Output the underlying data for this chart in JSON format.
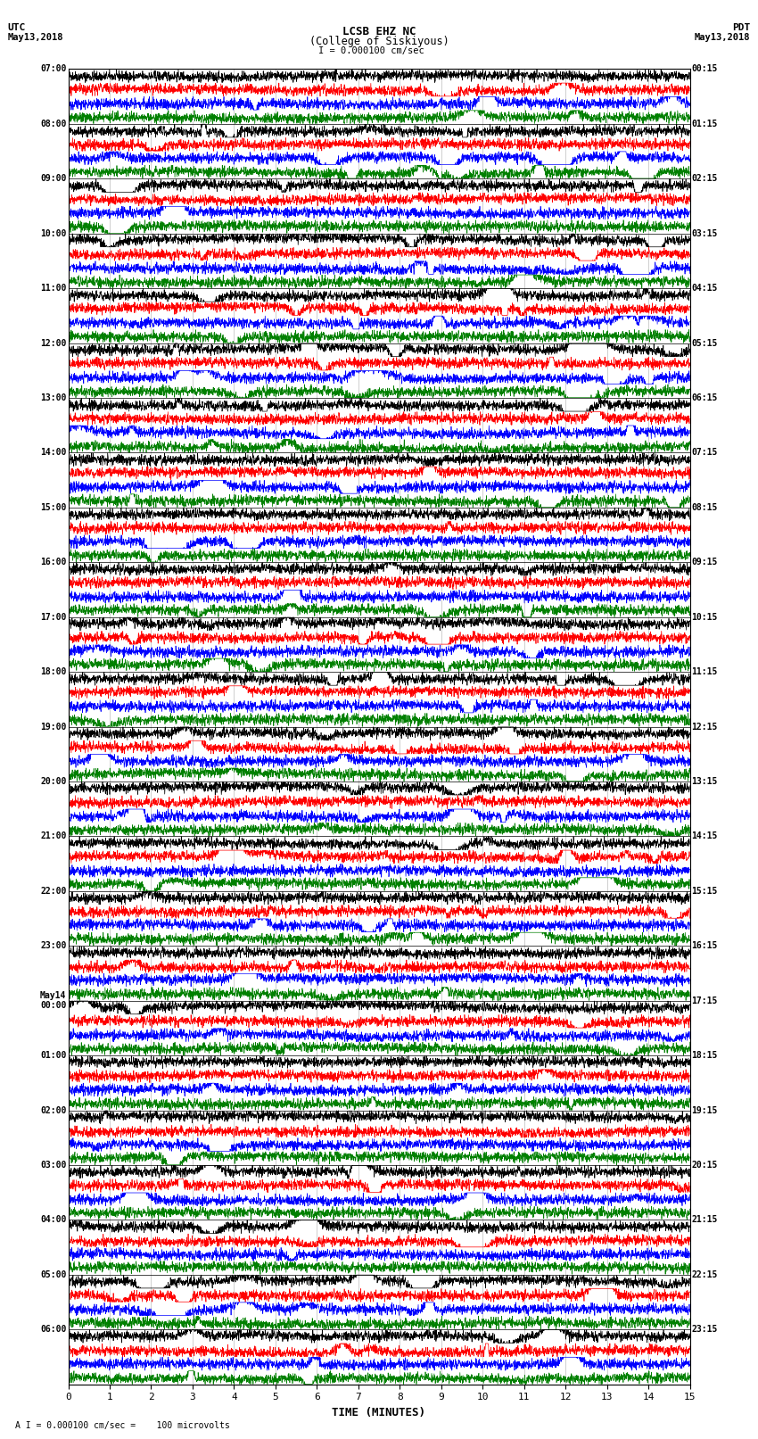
{
  "title_line1": "LCSB EHZ NC",
  "title_line2": "(College of Siskiyous)",
  "scale_label": "= 0.000100 cm/sec",
  "footer_label": "A I = 0.000100 cm/sec =    100 microvolts",
  "utc_label1": "UTC",
  "utc_label2": "May13,2018",
  "pdt_label1": "PDT",
  "pdt_label2": "May13,2018",
  "xlabel": "TIME (MINUTES)",
  "left_times": [
    "07:00",
    "08:00",
    "09:00",
    "10:00",
    "11:00",
    "12:00",
    "13:00",
    "14:00",
    "15:00",
    "16:00",
    "17:00",
    "18:00",
    "19:00",
    "20:00",
    "21:00",
    "22:00",
    "23:00",
    "May14\n00:00",
    "01:00",
    "02:00",
    "03:00",
    "04:00",
    "05:00",
    "06:00"
  ],
  "left_times_row": [
    0,
    4,
    8,
    12,
    16,
    20,
    24,
    28,
    32,
    36,
    40,
    44,
    48,
    52,
    56,
    60,
    64,
    68,
    72,
    76,
    80,
    84,
    88,
    92
  ],
  "right_times": [
    "00:15",
    "01:15",
    "02:15",
    "03:15",
    "04:15",
    "05:15",
    "06:15",
    "07:15",
    "08:15",
    "09:15",
    "10:15",
    "11:15",
    "12:15",
    "13:15",
    "14:15",
    "15:15",
    "16:15",
    "17:15",
    "18:15",
    "19:15",
    "20:15",
    "21:15",
    "22:15",
    "23:15"
  ],
  "right_times_row": [
    0,
    4,
    8,
    12,
    16,
    20,
    24,
    28,
    32,
    36,
    40,
    44,
    48,
    52,
    56,
    60,
    64,
    68,
    72,
    76,
    80,
    84,
    88,
    92
  ],
  "colors": [
    "black",
    "red",
    "blue",
    "green"
  ],
  "n_rows": 96,
  "traces_per_group": 4,
  "xmin": 0,
  "xmax": 15,
  "background": "white",
  "seed": 42,
  "trace_amplitude": 0.38,
  "noise_base": 0.18,
  "grid_color": "#888888",
  "grid_linewidth": 0.4
}
